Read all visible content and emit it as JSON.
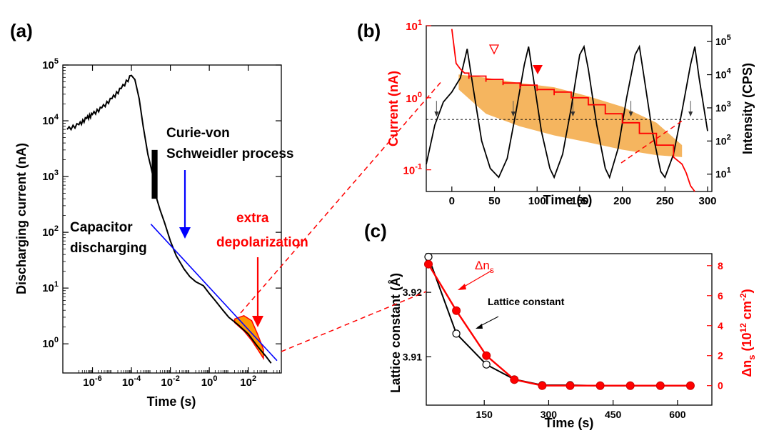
{
  "colors": {
    "black": "#000000",
    "red": "#ff0000",
    "blue": "#0000ff",
    "orange": "#ff9900",
    "fill": "#f5b55f"
  },
  "chart_data": [
    {
      "panel": "(a)",
      "type": "line",
      "xlabel": "Time (s)",
      "ylabel": "Discharging current (nA)",
      "x_scale": "log",
      "y_scale": "log",
      "xlim": [
        3e-08,
        5000
      ],
      "ylim": [
        0.3,
        100000
      ],
      "x_ticks": [
        "10^-6",
        "10^-4",
        "10^-2",
        "10^0",
        "10^2"
      ],
      "y_ticks": [
        "10^0",
        "10^1",
        "10^2",
        "10^3",
        "10^4",
        "10^5"
      ],
      "series": [
        {
          "color": "#000000",
          "x": [
            5e-08,
            2e-07,
            5e-07,
            1e-06,
            3e-06,
            1e-05,
            3e-05,
            0.0001,
            0.00015,
            0.00025,
            0.0004,
            0.0007,
            0.001,
            0.0015,
            0.002,
            0.003,
            0.005,
            0.01,
            0.02,
            0.05,
            0.1,
            0.2,
            0.5,
            1,
            2,
            5,
            10,
            30,
            100,
            300,
            800,
            1500
          ],
          "y": [
            7000,
            8500,
            11000,
            13000,
            17000,
            25000,
            38000,
            65000,
            55000,
            25000,
            8000,
            2500,
            1500,
            800,
            400,
            250,
            150,
            70,
            38,
            22,
            16,
            13,
            11,
            8,
            6,
            4,
            3,
            2.2,
            1.5,
            0.9,
            0.6,
            0.45
          ]
        },
        {
          "color": "#0000ff",
          "x": [
            0.001,
            3000
          ],
          "y": [
            140,
            0.5
          ]
        }
      ],
      "annotations": [
        {
          "text": "Curie-von",
          "color": "#000000"
        },
        {
          "text": "Schweidler process",
          "color": "#000000"
        },
        {
          "text": "Capacitor",
          "color": "#000000"
        },
        {
          "text": "discharging",
          "color": "#000000"
        },
        {
          "text": "extra",
          "color": "#ff0000"
        },
        {
          "text": "depolarization",
          "color": "#ff0000"
        }
      ]
    },
    {
      "panel": "(b)",
      "type": "line",
      "xlabel": "Time (s)",
      "ylabel_left": "Current (nA)",
      "ylabel_right": "Intensity (CPS)",
      "xlim": [
        -30,
        305
      ],
      "ylim_left": [
        0.05,
        10
      ],
      "ylim_right": [
        3,
        300000
      ],
      "x_ticks": [
        0,
        50,
        100,
        150,
        200,
        250,
        300
      ],
      "y_ticks_left": [
        "10^-1",
        "10^0",
        "10^1"
      ],
      "y_ticks_right": [
        "10^1",
        "10^2",
        "10^3",
        "10^4",
        "10^5"
      ],
      "series": [
        {
          "color": "#ff0000",
          "axis": "left",
          "x": [
            0,
            5,
            10,
            15,
            20,
            40,
            60,
            80,
            100,
            120,
            140,
            160,
            180,
            200,
            220,
            240,
            260,
            270,
            275,
            280,
            285
          ],
          "y": [
            9,
            3,
            2.5,
            2.2,
            2.0,
            1.8,
            1.6,
            1.5,
            1.3,
            1.2,
            1.0,
            0.8,
            0.6,
            0.45,
            0.32,
            0.22,
            0.15,
            0.12,
            0.09,
            0.06,
            0.05
          ]
        },
        {
          "color": "#000000",
          "axis": "right",
          "x": [
            -30,
            -20,
            -10,
            0,
            10,
            18,
            25,
            35,
            45,
            55,
            65,
            75,
            85,
            90,
            95,
            105,
            115,
            120,
            130,
            140,
            150,
            155,
            160,
            170,
            180,
            185,
            195,
            205,
            215,
            220,
            225,
            235,
            245,
            250,
            260,
            270,
            280,
            285,
            290,
            300
          ],
          "y": [
            20,
            300,
            1500,
            3000,
            8000,
            60000,
            4000,
            100,
            15,
            8,
            30,
            700,
            20000,
            70000,
            10000,
            200,
            15,
            8,
            40,
            1000,
            40000,
            70000,
            15000,
            300,
            15,
            8,
            60,
            2000,
            40000,
            70000,
            10000,
            200,
            12,
            8,
            40,
            800,
            20000,
            70000,
            8000,
            200
          ]
        }
      ],
      "reference_line": {
        "value": 0.5,
        "axis": "left",
        "style": "dashed"
      }
    },
    {
      "panel": "(c)",
      "type": "line",
      "xlabel": "Time (s)",
      "ylabel_left": "Lattice constant (Å)",
      "ylabel_right": "Δn_s (10^12 cm^-2)",
      "xlim": [
        15,
        680
      ],
      "ylim_left": [
        3.9025,
        3.926
      ],
      "ylim_right": [
        -1.3,
        8.8
      ],
      "x_ticks": [
        150,
        300,
        450,
        600
      ],
      "y_ticks_left": [
        3.91,
        3.92
      ],
      "y_ticks_right": [
        0,
        2,
        4,
        6,
        8
      ],
      "series": [
        {
          "name": "Lattice constant",
          "color": "#000000",
          "axis": "left",
          "marker": "open-circle",
          "x": [
            20,
            85,
            155,
            220,
            285,
            350,
            420,
            490,
            560,
            630
          ],
          "y": [
            3.9255,
            3.9136,
            3.9088,
            3.9065,
            3.9056,
            3.9056,
            3.9055,
            3.9055,
            3.9055,
            3.9055
          ]
        },
        {
          "name": "Δn_s",
          "color": "#ff0000",
          "axis": "right",
          "marker": "filled-circle",
          "x": [
            20,
            85,
            155,
            220,
            285,
            350,
            420,
            490,
            560,
            630
          ],
          "y": [
            8.1,
            5.0,
            2.0,
            0.4,
            0.0,
            0.0,
            0.0,
            0.0,
            0.0,
            0.0
          ]
        }
      ]
    }
  ],
  "labels": {
    "panel_a": "(a)",
    "panel_b": "(b)",
    "panel_c": "(c)",
    "a_xlabel": "Time (s)",
    "a_ylabel": "Discharging current (nA)",
    "a_ann1": "Curie-von",
    "a_ann2": "Schweidler process",
    "a_ann3": "Capacitor",
    "a_ann4": "discharging",
    "a_ann5": "extra",
    "a_ann6": "depolarization",
    "b_xlabel": "Time (s)",
    "b_ylabel_left": "Current (nA)",
    "b_ylabel_right": "Intensity (CPS)",
    "c_xlabel": "Time (s)",
    "c_ylabel_left": "Lattice constant (Å)",
    "c_ann_lattice": "Lattice constant",
    "c_ann_dn": "Δn",
    "c_ann_dn_sub": "s"
  }
}
